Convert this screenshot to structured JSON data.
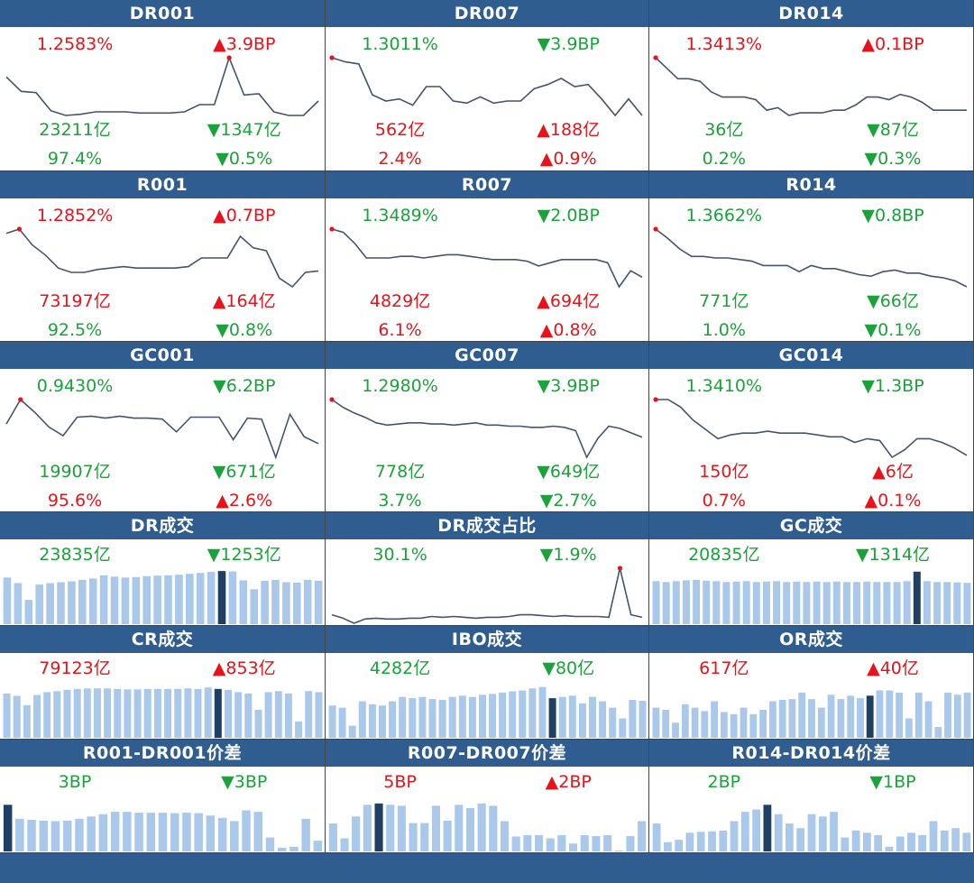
{
  "colors": {
    "header": "#2f5d8f",
    "up": "#e8131a",
    "down": "#1aa33a",
    "line": "#44546a",
    "bar": "#a9c8ea",
    "bar_highlight": "#1f3f63",
    "marker": "#e8131a"
  },
  "panels": [
    {
      "title": "DR001",
      "kind": "line",
      "rows": [
        [
          {
            "text": "1.2583%",
            "dir": "up"
          },
          {
            "text": "▲3.9BP",
            "dir": "up"
          }
        ],
        [
          {
            "text": "23211亿",
            "dir": "down"
          },
          {
            "text": "▼1347亿",
            "dir": "down"
          }
        ],
        [
          {
            "text": "97.4%",
            "dir": "down"
          },
          {
            "text": "▼0.5%",
            "dir": "down"
          }
        ]
      ],
      "values": [
        1.45,
        1.33,
        1.32,
        1.17,
        1.13,
        1.14,
        1.16,
        1.16,
        1.16,
        1.15,
        1.15,
        1.15,
        1.16,
        1.22,
        1.22,
        1.61,
        1.3,
        1.31,
        1.16,
        1.13,
        1.13,
        1.25
      ],
      "marker": 15
    },
    {
      "title": "DR007",
      "kind": "line",
      "rows": [
        [
          {
            "text": "1.3011%",
            "dir": "down"
          },
          {
            "text": "▼3.9BP",
            "dir": "down"
          }
        ],
        [
          {
            "text": "562亿",
            "dir": "up"
          },
          {
            "text": "▲188亿",
            "dir": "up"
          }
        ],
        [
          {
            "text": "2.4%",
            "dir": "up"
          },
          {
            "text": "▲0.9%",
            "dir": "up"
          }
        ]
      ],
      "values": [
        1.58,
        1.56,
        1.55,
        1.4,
        1.37,
        1.38,
        1.35,
        1.44,
        1.44,
        1.37,
        1.36,
        1.39,
        1.36,
        1.37,
        1.37,
        1.43,
        1.45,
        1.48,
        1.44,
        1.45,
        1.38,
        1.3,
        1.38,
        1.3
      ],
      "marker": 0
    },
    {
      "title": "DR014",
      "kind": "line",
      "rows": [
        [
          {
            "text": "1.3413%",
            "dir": "up"
          },
          {
            "text": "▲0.1BP",
            "dir": "up"
          }
        ],
        [
          {
            "text": "36亿",
            "dir": "down"
          },
          {
            "text": "▼87亿",
            "dir": "down"
          }
        ],
        [
          {
            "text": "0.2%",
            "dir": "down"
          },
          {
            "text": "▼0.3%",
            "dir": "down"
          }
        ]
      ],
      "values": [
        1.6,
        1.56,
        1.52,
        1.52,
        1.51,
        1.47,
        1.45,
        1.45,
        1.45,
        1.44,
        1.4,
        1.41,
        1.38,
        1.39,
        1.39,
        1.39,
        1.4,
        1.4,
        1.42,
        1.45,
        1.45,
        1.44,
        1.46,
        1.45,
        1.43,
        1.4,
        1.4,
        1.4,
        1.4
      ],
      "marker": 0
    },
    {
      "title": "R001",
      "kind": "line",
      "rows": [
        [
          {
            "text": "1.2852%",
            "dir": "up"
          },
          {
            "text": "▲0.7BP",
            "dir": "up"
          }
        ],
        [
          {
            "text": "73197亿",
            "dir": "up"
          },
          {
            "text": "▲164亿",
            "dir": "up"
          }
        ],
        [
          {
            "text": "92.5%",
            "dir": "down"
          },
          {
            "text": "▼0.8%",
            "dir": "down"
          }
        ]
      ],
      "values": [
        1.5,
        1.53,
        1.42,
        1.35,
        1.26,
        1.23,
        1.23,
        1.25,
        1.26,
        1.27,
        1.26,
        1.26,
        1.26,
        1.26,
        1.27,
        1.33,
        1.33,
        1.33,
        1.48,
        1.4,
        1.38,
        1.19,
        1.13,
        1.23,
        1.24
      ],
      "marker": 1
    },
    {
      "title": "R007",
      "kind": "line",
      "rows": [
        [
          {
            "text": "1.3489%",
            "dir": "down"
          },
          {
            "text": "▼2.0BP",
            "dir": "down"
          }
        ],
        [
          {
            "text": "4829亿",
            "dir": "up"
          },
          {
            "text": "▲694亿",
            "dir": "up"
          }
        ],
        [
          {
            "text": "6.1%",
            "dir": "up"
          },
          {
            "text": "▲0.8%",
            "dir": "up"
          }
        ]
      ],
      "values": [
        1.6,
        1.58,
        1.51,
        1.42,
        1.42,
        1.42,
        1.43,
        1.43,
        1.42,
        1.43,
        1.44,
        1.44,
        1.43,
        1.42,
        1.41,
        1.41,
        1.41,
        1.4,
        1.37,
        1.39,
        1.41,
        1.41,
        1.41,
        1.41,
        1.39,
        1.24,
        1.34,
        1.3
      ],
      "marker": 0
    },
    {
      "title": "R014",
      "kind": "line",
      "rows": [
        [
          {
            "text": "1.3662%",
            "dir": "down"
          },
          {
            "text": "▼0.8BP",
            "dir": "down"
          }
        ],
        [
          {
            "text": "771亿",
            "dir": "down"
          },
          {
            "text": "▼66亿",
            "dir": "down"
          }
        ],
        [
          {
            "text": "1.0%",
            "dir": "down"
          },
          {
            "text": "▼0.1%",
            "dir": "down"
          }
        ]
      ],
      "values": [
        1.62,
        1.56,
        1.49,
        1.44,
        1.44,
        1.43,
        1.43,
        1.42,
        1.41,
        1.38,
        1.38,
        1.38,
        1.34,
        1.38,
        1.36,
        1.36,
        1.34,
        1.32,
        1.31,
        1.34,
        1.35,
        1.33,
        1.33,
        1.31,
        1.3,
        1.28,
        1.24
      ],
      "marker": 0
    },
    {
      "title": "GC001",
      "kind": "line",
      "rows": [
        [
          {
            "text": "0.9430%",
            "dir": "down"
          },
          {
            "text": "▼6.2BP",
            "dir": "down"
          }
        ],
        [
          {
            "text": "19907亿",
            "dir": "down"
          },
          {
            "text": "▼671亿",
            "dir": "down"
          }
        ],
        [
          {
            "text": "95.6%",
            "dir": "up"
          },
          {
            "text": "▲2.6%",
            "dir": "up"
          }
        ]
      ],
      "values": [
        1.4,
        1.65,
        1.52,
        1.37,
        1.28,
        1.47,
        1.48,
        1.46,
        1.48,
        1.46,
        1.46,
        1.45,
        1.32,
        1.47,
        1.47,
        1.47,
        1.24,
        1.46,
        1.45,
        1.06,
        1.5,
        1.27,
        1.2
      ],
      "marker": 1
    },
    {
      "title": "GC007",
      "kind": "line",
      "rows": [
        [
          {
            "text": "1.2980%",
            "dir": "down"
          },
          {
            "text": "▼3.9BP",
            "dir": "down"
          }
        ],
        [
          {
            "text": "778亿",
            "dir": "down"
          },
          {
            "text": "▼649亿",
            "dir": "down"
          }
        ],
        [
          {
            "text": "3.7%",
            "dir": "down"
          },
          {
            "text": "▼2.7%",
            "dir": "down"
          }
        ]
      ],
      "values": [
        1.72,
        1.65,
        1.6,
        1.56,
        1.51,
        1.49,
        1.5,
        1.51,
        1.51,
        1.5,
        1.5,
        1.49,
        1.5,
        1.51,
        1.49,
        1.49,
        1.48,
        1.48,
        1.47,
        1.47,
        1.48,
        1.47,
        1.44,
        1.2,
        1.37,
        1.48,
        1.46,
        1.42,
        1.38
      ],
      "marker": 0
    },
    {
      "title": "GC014",
      "kind": "line",
      "rows": [
        [
          {
            "text": "1.3410%",
            "dir": "down"
          },
          {
            "text": "▼1.3BP",
            "dir": "down"
          }
        ],
        [
          {
            "text": "150亿",
            "dir": "up"
          },
          {
            "text": "▲6亿",
            "dir": "up"
          }
        ],
        [
          {
            "text": "0.7%",
            "dir": "up"
          },
          {
            "text": "▲0.1%",
            "dir": "up"
          }
        ]
      ],
      "values": [
        1.61,
        1.61,
        1.57,
        1.5,
        1.45,
        1.4,
        1.42,
        1.43,
        1.43,
        1.44,
        1.43,
        1.43,
        1.43,
        1.42,
        1.41,
        1.41,
        1.38,
        1.4,
        1.39,
        1.3,
        1.34,
        1.4,
        1.4,
        1.38,
        1.35,
        1.31
      ],
      "marker": 0
    },
    {
      "title": "DR成交",
      "kind": "bar",
      "rows": [
        [
          {
            "text": "23835亿",
            "dir": "down"
          },
          {
            "text": "▼1253亿",
            "dir": "down"
          }
        ]
      ],
      "values": [
        1.0,
        0.88,
        0.52,
        0.85,
        0.88,
        0.9,
        0.92,
        0.95,
        0.98,
        1.05,
        1.02,
        1.0,
        1.01,
        1.03,
        1.04,
        1.05,
        1.06,
        1.08,
        1.1,
        1.12,
        1.14,
        1.13,
        0.94,
        0.75,
        0.93,
        0.95,
        0.9,
        0.89,
        0.95,
        0.93
      ],
      "highlight": 20,
      "ylim": [
        0,
        1.2
      ]
    },
    {
      "title": "DR成交占比",
      "kind": "line",
      "rows": [
        [
          {
            "text": "30.1%",
            "dir": "down"
          },
          {
            "text": "▼1.9%",
            "dir": "down"
          }
        ]
      ],
      "values": [
        0.1,
        0.06,
        0.0,
        0.05,
        0.06,
        0.05,
        0.05,
        0.06,
        0.06,
        0.08,
        0.07,
        0.08,
        0.07,
        0.06,
        0.07,
        0.07,
        0.08,
        0.1,
        0.1,
        0.09,
        0.08,
        0.09,
        0.08,
        0.08,
        0.08,
        0.07,
        0.65,
        0.1,
        0.07
      ],
      "marker": 26
    },
    {
      "title": "GC成交",
      "kind": "bar",
      "rows": [
        [
          {
            "text": "20835亿",
            "dir": "down"
          },
          {
            "text": "▼1314亿",
            "dir": "down"
          }
        ]
      ],
      "values": [
        1.0,
        0.98,
        1.0,
        1.02,
        1.03,
        1.01,
        1.0,
        0.98,
        0.99,
        1.0,
        0.98,
        0.99,
        1.0,
        0.98,
        0.99,
        0.98,
        0.99,
        0.98,
        0.99,
        0.98,
        0.98,
        0.99,
        0.98,
        0.98,
        0.98,
        1.0,
        1.22,
        1.0,
        0.98,
        0.98,
        0.97,
        0.96
      ],
      "highlight": 26,
      "ylim": [
        0,
        1.3
      ]
    },
    {
      "title": "CR成交",
      "kind": "bar",
      "rows": [
        [
          {
            "text": "79123亿",
            "dir": "up"
          },
          {
            "text": "▲853亿",
            "dir": "up"
          }
        ]
      ],
      "values": [
        0.95,
        0.9,
        0.7,
        0.92,
        0.98,
        1.0,
        1.03,
        1.05,
        1.06,
        1.06,
        1.06,
        1.05,
        1.04,
        1.04,
        1.05,
        1.05,
        1.05,
        1.05,
        1.06,
        1.05,
        1.08,
        1.05,
        1.03,
        0.98,
        0.95,
        0.6,
        0.98,
        1.0,
        0.95,
        0.35,
        1.0,
        0.98
      ],
      "highlight": 21,
      "ylim": [
        0,
        1.2
      ]
    },
    {
      "title": "IBO成交",
      "kind": "bar",
      "rows": [
        [
          {
            "text": "4282亿",
            "dir": "down"
          },
          {
            "text": "▼80亿",
            "dir": "down"
          }
        ]
      ],
      "values": [
        0.75,
        0.7,
        0.28,
        0.85,
        0.78,
        0.75,
        0.85,
        0.95,
        0.92,
        0.95,
        0.9,
        0.88,
        0.95,
        0.98,
        0.95,
        1.0,
        1.02,
        1.05,
        1.08,
        1.1,
        1.15,
        1.18,
        0.92,
        0.95,
        0.98,
        0.8,
        0.95,
        0.85,
        0.7,
        0.45,
        0.88,
        0.86
      ],
      "highlight": 22,
      "ylim": [
        0,
        1.3
      ]
    },
    {
      "title": "OR成交",
      "kind": "bar",
      "rows": [
        [
          {
            "text": "617亿",
            "dir": "up"
          },
          {
            "text": "▲40亿",
            "dir": "up"
          }
        ]
      ],
      "values": [
        0.7,
        0.65,
        0.35,
        0.78,
        0.7,
        0.62,
        0.85,
        0.6,
        0.55,
        0.7,
        0.55,
        0.65,
        0.85,
        0.88,
        0.9,
        1.05,
        0.9,
        0.7,
        1.0,
        0.9,
        0.98,
        0.92,
        0.98,
        1.1,
        1.1,
        1.05,
        0.45,
        1.05,
        0.85,
        0.25,
        1.05,
        1.0,
        1.05
      ],
      "highlight": 22,
      "ylim": [
        0,
        1.3
      ]
    },
    {
      "title": "R001-DR001价差",
      "kind": "bar",
      "rows": [
        [
          {
            "text": "3BP",
            "dir": "down"
          },
          {
            "text": "▼3BP",
            "dir": "down"
          }
        ]
      ],
      "values": [
        10,
        7,
        6.8,
        6.6,
        6.5,
        6.6,
        7,
        7.5,
        8,
        8.5,
        8.5,
        8.3,
        8.3,
        8.3,
        8.2,
        8.3,
        8.2,
        7.7,
        7.2,
        6.5,
        8.8,
        8.5,
        3,
        0.8,
        1,
        7,
        2.3
      ],
      "highlight": 0,
      "ylim": [
        0,
        12
      ]
    },
    {
      "title": "R007-DR007价差",
      "kind": "bar",
      "rows": [
        [
          {
            "text": "5BP",
            "dir": "up"
          },
          {
            "text": "▲2BP",
            "dir": "up"
          }
        ]
      ],
      "values": [
        6,
        2.8,
        7.5,
        10,
        10.3,
        10,
        9.8,
        6.1,
        6.1,
        9.8,
        6.6,
        10,
        9.3,
        10.3,
        9.8,
        6.5,
        3.2,
        3.5,
        3.5,
        2.8,
        3.5,
        1.7,
        3.5,
        3.3,
        3.5,
        0.2,
        3.3,
        6.5
      ],
      "highlight": 4,
      "ylim": [
        0,
        12
      ]
    },
    {
      "title": "R014-DR014价差",
      "kind": "bar",
      "rows": [
        [
          {
            "text": "2BP",
            "dir": "down"
          },
          {
            "text": "▼1BP",
            "dir": "down"
          }
        ]
      ],
      "values": [
        6,
        2,
        2.5,
        4,
        4.2,
        4.3,
        4.5,
        6.5,
        8.5,
        9,
        10,
        8,
        6,
        5,
        8,
        7.5,
        8.5,
        3,
        4.5,
        4,
        3.5,
        1,
        3.2,
        4,
        3.5,
        6.5,
        4.5,
        5,
        4
      ],
      "highlight": 10,
      "ylim": [
        0,
        12
      ]
    }
  ]
}
